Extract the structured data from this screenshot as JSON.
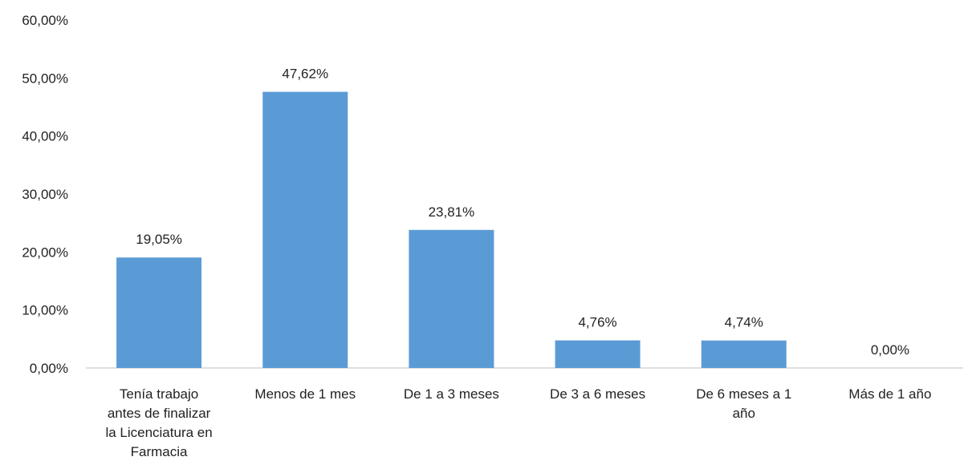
{
  "chart_data": {
    "type": "bar",
    "categories": [
      "Tenía trabajo antes de finalizar la Licenciatura en Farmacia",
      "Menos de 1 mes",
      "De 1 a 3 meses",
      "De 3 a 6 meses",
      "De 6 meses a 1 año",
      "Más de 1 año"
    ],
    "category_lines": [
      [
        "Tenía trabajo",
        "antes de finalizar",
        "la Licenciatura en",
        "Farmacia"
      ],
      [
        "Menos de 1 mes"
      ],
      [
        "De 1 a 3 meses"
      ],
      [
        "De 3 a 6 meses"
      ],
      [
        "De 6 meses a 1",
        "año"
      ],
      [
        "Más de 1 año"
      ]
    ],
    "values": [
      19.05,
      47.62,
      23.81,
      4.76,
      4.74,
      0.0
    ],
    "value_labels": [
      "19,05%",
      "47,62%",
      "23,81%",
      "4,76%",
      "4,74%",
      "0,00%"
    ],
    "yticks": [
      0,
      10,
      20,
      30,
      40,
      50,
      60
    ],
    "ytick_labels": [
      "0,00%",
      "10,00%",
      "20,00%",
      "30,00%",
      "40,00%",
      "50,00%",
      "60,00%"
    ],
    "ylim": [
      0,
      60
    ],
    "grid": false,
    "bar_color": "#5B9BD5",
    "axis_color": "#BFBFBF",
    "title": "",
    "xlabel": "",
    "ylabel": ""
  }
}
